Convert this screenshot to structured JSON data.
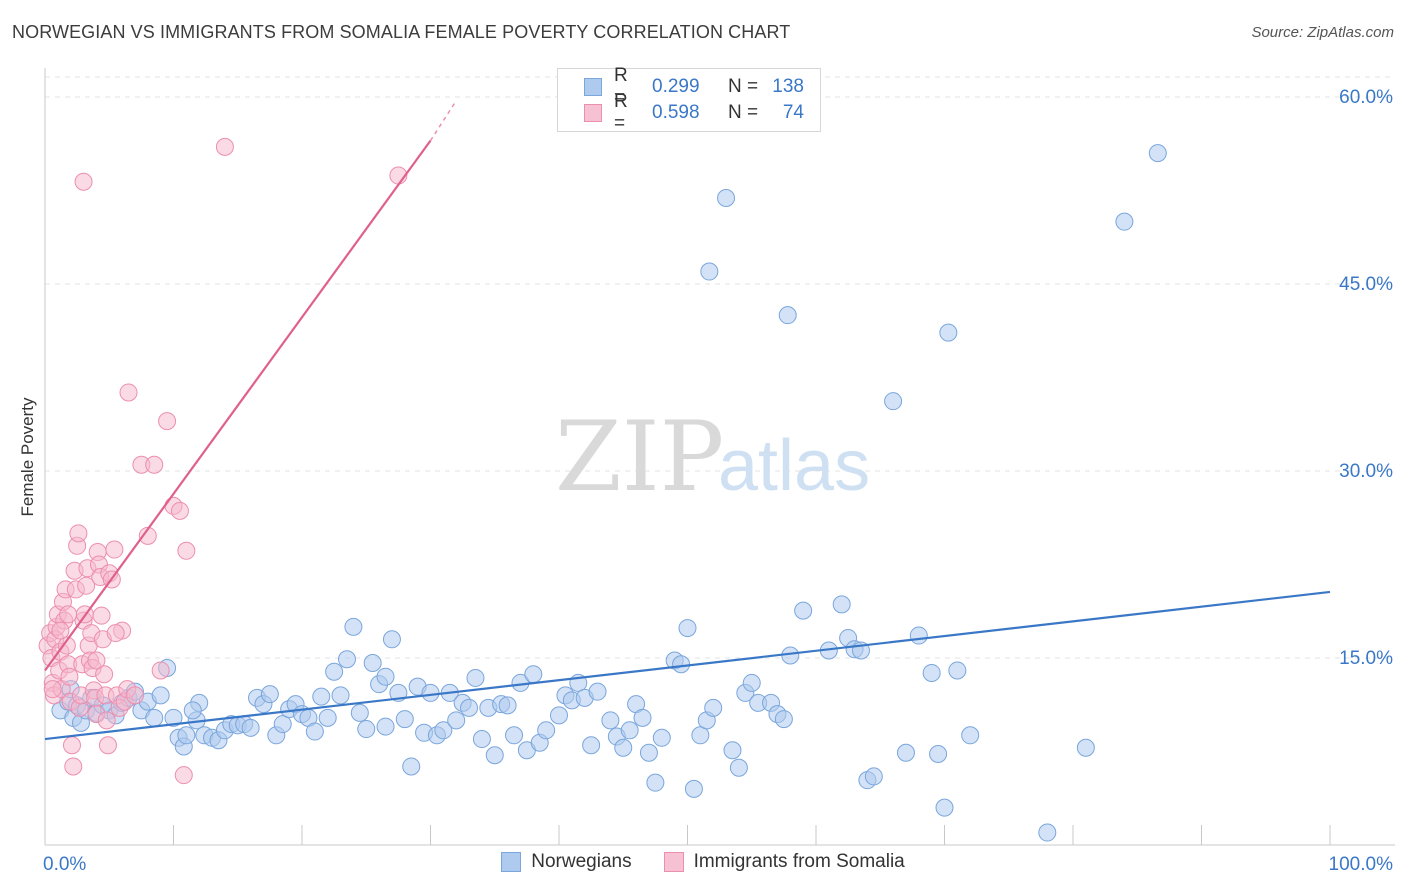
{
  "title": "NORWEGIAN VS IMMIGRANTS FROM SOMALIA FEMALE POVERTY CORRELATION CHART",
  "source": "Source: ZipAtlas.com",
  "watermark": {
    "zip": "ZIP",
    "atlas": "atlas"
  },
  "colors": {
    "blue": "#3a78c7",
    "blue_fill": "#aecbef",
    "blue_stroke": "#7aa6dc",
    "pink": "#e0608c",
    "pink_fill": "#f6b8cb",
    "pink_stroke": "#ec8fae",
    "grid": "#e3e3e3",
    "axis_text": "#3a78c7"
  },
  "legend": {
    "rows": [
      {
        "r_label": "R =",
        "r_value": "0.299",
        "n_label": "N =",
        "n_value": "138"
      },
      {
        "r_label": "R =",
        "r_value": "0.598",
        "n_label": "N =",
        "n_value": "74"
      }
    ]
  },
  "bottom_legend": [
    "Norwegians",
    "Immigrants from Somalia"
  ],
  "chart_data": {
    "type": "scatter",
    "title": "NORWEGIAN VS IMMIGRANTS FROM SOMALIA FEMALE POVERTY CORRELATION CHART",
    "xlabel": "",
    "ylabel": "Female Poverty",
    "xlim": [
      0,
      1.05
    ],
    "ylim": [
      0,
      0.6
    ],
    "y_ticks": [
      {
        "value": 0.15,
        "label": "15.0%"
      },
      {
        "value": 0.3,
        "label": "30.0%"
      },
      {
        "value": 0.45,
        "label": "45.0%"
      },
      {
        "value": 0.6,
        "label": "60.0%"
      }
    ],
    "x_tick_labels": [
      {
        "value": 0.0,
        "label": "0.0%"
      },
      {
        "value": 1.0,
        "label": "100.0%"
      }
    ],
    "x_minor_ticks": [
      0.1,
      0.2,
      0.3,
      0.4,
      0.5,
      0.6,
      0.7,
      0.8,
      0.9,
      1.0
    ],
    "grid": true,
    "legend_position": "top-center",
    "series": [
      {
        "name": "Norwegians",
        "r": 0.299,
        "n": 138,
        "trend": {
          "x0": 0.0,
          "y0": 0.085,
          "x1": 1.0,
          "y1": 0.203
        },
        "points": [
          [
            0.012,
            0.108
          ],
          [
            0.018,
            0.115
          ],
          [
            0.02,
            0.125
          ],
          [
            0.022,
            0.102
          ],
          [
            0.025,
            0.112
          ],
          [
            0.028,
            0.098
          ],
          [
            0.032,
            0.108
          ],
          [
            0.036,
            0.118
          ],
          [
            0.04,
            0.106
          ],
          [
            0.045,
            0.112
          ],
          [
            0.05,
            0.108
          ],
          [
            0.055,
            0.104
          ],
          [
            0.06,
            0.114
          ],
          [
            0.065,
            0.118
          ],
          [
            0.07,
            0.123
          ],
          [
            0.075,
            0.108
          ],
          [
            0.08,
            0.115
          ],
          [
            0.085,
            0.102
          ],
          [
            0.09,
            0.12
          ],
          [
            0.095,
            0.142
          ],
          [
            0.1,
            0.102
          ],
          [
            0.104,
            0.086
          ],
          [
            0.108,
            0.079
          ],
          [
            0.11,
            0.088
          ],
          [
            0.118,
            0.1
          ],
          [
            0.12,
            0.114
          ],
          [
            0.124,
            0.088
          ],
          [
            0.13,
            0.086
          ],
          [
            0.135,
            0.084
          ],
          [
            0.14,
            0.092
          ],
          [
            0.145,
            0.097
          ],
          [
            0.15,
            0.096
          ],
          [
            0.155,
            0.097
          ],
          [
            0.16,
            0.094
          ],
          [
            0.165,
            0.118
          ],
          [
            0.17,
            0.113
          ],
          [
            0.175,
            0.121
          ],
          [
            0.18,
            0.088
          ],
          [
            0.185,
            0.097
          ],
          [
            0.19,
            0.109
          ],
          [
            0.195,
            0.113
          ],
          [
            0.2,
            0.105
          ],
          [
            0.205,
            0.102
          ],
          [
            0.21,
            0.091
          ],
          [
            0.215,
            0.119
          ],
          [
            0.22,
            0.102
          ],
          [
            0.225,
            0.139
          ],
          [
            0.23,
            0.12
          ],
          [
            0.235,
            0.149
          ],
          [
            0.24,
            0.175
          ],
          [
            0.245,
            0.106
          ],
          [
            0.25,
            0.093
          ],
          [
            0.255,
            0.146
          ],
          [
            0.26,
            0.129
          ],
          [
            0.265,
            0.135
          ],
          [
            0.27,
            0.165
          ],
          [
            0.275,
            0.122
          ],
          [
            0.28,
            0.101
          ],
          [
            0.285,
            0.063
          ],
          [
            0.29,
            0.127
          ],
          [
            0.295,
            0.09
          ],
          [
            0.3,
            0.122
          ],
          [
            0.305,
            0.088
          ],
          [
            0.31,
            0.092
          ],
          [
            0.315,
            0.122
          ],
          [
            0.32,
            0.1
          ],
          [
            0.325,
            0.114
          ],
          [
            0.33,
            0.11
          ],
          [
            0.335,
            0.134
          ],
          [
            0.34,
            0.085
          ],
          [
            0.345,
            0.11
          ],
          [
            0.35,
            0.072
          ],
          [
            0.355,
            0.113
          ],
          [
            0.36,
            0.112
          ],
          [
            0.365,
            0.088
          ],
          [
            0.37,
            0.13
          ],
          [
            0.375,
            0.076
          ],
          [
            0.38,
            0.137
          ],
          [
            0.385,
            0.082
          ],
          [
            0.39,
            0.092
          ],
          [
            0.4,
            0.104
          ],
          [
            0.405,
            0.12
          ],
          [
            0.41,
            0.116
          ],
          [
            0.415,
            0.13
          ],
          [
            0.42,
            0.118
          ],
          [
            0.425,
            0.08
          ],
          [
            0.43,
            0.123
          ],
          [
            0.44,
            0.1
          ],
          [
            0.445,
            0.087
          ],
          [
            0.45,
            0.078
          ],
          [
            0.455,
            0.092
          ],
          [
            0.46,
            0.113
          ],
          [
            0.465,
            0.102
          ],
          [
            0.47,
            0.074
          ],
          [
            0.475,
            0.05
          ],
          [
            0.48,
            0.086
          ],
          [
            0.49,
            0.148
          ],
          [
            0.495,
            0.145
          ],
          [
            0.5,
            0.174
          ],
          [
            0.505,
            0.045
          ],
          [
            0.51,
            0.088
          ],
          [
            0.515,
            0.1
          ],
          [
            0.52,
            0.11
          ],
          [
            0.53,
            0.519
          ],
          [
            0.535,
            0.076
          ],
          [
            0.54,
            0.062
          ],
          [
            0.545,
            0.122
          ],
          [
            0.55,
            0.13
          ],
          [
            0.555,
            0.114
          ],
          [
            0.565,
            0.114
          ],
          [
            0.57,
            0.105
          ],
          [
            0.575,
            0.101
          ],
          [
            0.58,
            0.152
          ],
          [
            0.59,
            0.188
          ],
          [
            0.61,
            0.156
          ],
          [
            0.62,
            0.193
          ],
          [
            0.625,
            0.166
          ],
          [
            0.63,
            0.157
          ],
          [
            0.635,
            0.156
          ],
          [
            0.64,
            0.052
          ],
          [
            0.645,
            0.055
          ],
          [
            0.66,
            0.356
          ],
          [
            0.67,
            0.074
          ],
          [
            0.68,
            0.168
          ],
          [
            0.69,
            0.138
          ],
          [
            0.695,
            0.073
          ],
          [
            0.7,
            0.03
          ],
          [
            0.71,
            0.14
          ],
          [
            0.72,
            0.088
          ],
          [
            0.78,
            0.01
          ],
          [
            0.81,
            0.078
          ],
          [
            0.84,
            0.5
          ],
          [
            0.866,
            0.555
          ],
          [
            0.517,
            0.46
          ],
          [
            0.578,
            0.425
          ],
          [
            0.703,
            0.411
          ],
          [
            0.265,
            0.095
          ],
          [
            0.115,
            0.108
          ]
        ]
      },
      {
        "name": "Immigrants from Somalia",
        "r": 0.598,
        "n": 74,
        "trend": {
          "x0": 0.0,
          "y0": 0.14,
          "x1": 0.3,
          "y1": 0.565
        },
        "trend_dashed": {
          "x0": 0.3,
          "y0": 0.565,
          "x1": 0.32,
          "y1": 0.597
        },
        "points": [
          [
            0.002,
            0.16
          ],
          [
            0.004,
            0.17
          ],
          [
            0.005,
            0.15
          ],
          [
            0.006,
            0.13
          ],
          [
            0.007,
            0.12
          ],
          [
            0.008,
            0.165
          ],
          [
            0.009,
            0.175
          ],
          [
            0.01,
            0.185
          ],
          [
            0.011,
            0.14
          ],
          [
            0.012,
            0.155
          ],
          [
            0.013,
            0.125
          ],
          [
            0.014,
            0.195
          ],
          [
            0.015,
            0.18
          ],
          [
            0.016,
            0.205
          ],
          [
            0.017,
            0.16
          ],
          [
            0.018,
            0.145
          ],
          [
            0.019,
            0.135
          ],
          [
            0.02,
            0.115
          ],
          [
            0.021,
            0.08
          ],
          [
            0.022,
            0.063
          ],
          [
            0.023,
            0.22
          ],
          [
            0.024,
            0.205
          ],
          [
            0.025,
            0.24
          ],
          [
            0.026,
            0.25
          ],
          [
            0.027,
            0.11
          ],
          [
            0.028,
            0.12
          ],
          [
            0.029,
            0.145
          ],
          [
            0.03,
            0.18
          ],
          [
            0.031,
            0.185
          ],
          [
            0.032,
            0.208
          ],
          [
            0.033,
            0.222
          ],
          [
            0.034,
            0.16
          ],
          [
            0.035,
            0.148
          ],
          [
            0.036,
            0.17
          ],
          [
            0.037,
            0.142
          ],
          [
            0.038,
            0.124
          ],
          [
            0.039,
            0.118
          ],
          [
            0.04,
            0.105
          ],
          [
            0.041,
            0.235
          ],
          [
            0.042,
            0.225
          ],
          [
            0.043,
            0.215
          ],
          [
            0.044,
            0.184
          ],
          [
            0.045,
            0.165
          ],
          [
            0.046,
            0.137
          ],
          [
            0.047,
            0.12
          ],
          [
            0.048,
            0.1
          ],
          [
            0.049,
            0.08
          ],
          [
            0.05,
            0.218
          ],
          [
            0.052,
            0.213
          ],
          [
            0.054,
            0.237
          ],
          [
            0.056,
            0.12
          ],
          [
            0.058,
            0.11
          ],
          [
            0.06,
            0.172
          ],
          [
            0.062,
            0.115
          ],
          [
            0.064,
            0.125
          ],
          [
            0.065,
            0.363
          ],
          [
            0.03,
            0.532
          ],
          [
            0.075,
            0.305
          ],
          [
            0.08,
            0.248
          ],
          [
            0.085,
            0.305
          ],
          [
            0.09,
            0.14
          ],
          [
            0.095,
            0.34
          ],
          [
            0.1,
            0.272
          ],
          [
            0.105,
            0.268
          ],
          [
            0.108,
            0.056
          ],
          [
            0.11,
            0.236
          ],
          [
            0.14,
            0.56
          ],
          [
            0.275,
            0.537
          ],
          [
            0.055,
            0.17
          ],
          [
            0.012,
            0.172
          ],
          [
            0.006,
            0.125
          ],
          [
            0.018,
            0.185
          ],
          [
            0.07,
            0.12
          ],
          [
            0.04,
            0.148
          ]
        ]
      }
    ]
  }
}
